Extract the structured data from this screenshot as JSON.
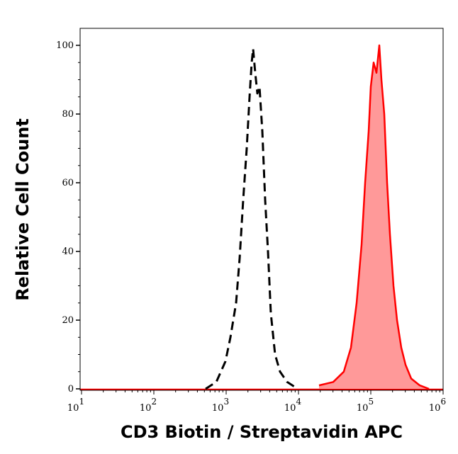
{
  "chart_data": {
    "type": "area",
    "title": "",
    "xlabel": "CD3 Biotin / Streptavidin APC",
    "ylabel": "Relative Cell Count",
    "xscale": "log",
    "xlim": [
      8,
      1200000
    ],
    "ylim": [
      0,
      105
    ],
    "x_ticks": [
      {
        "value": 10,
        "base": "10",
        "exp": "1"
      },
      {
        "value": 100,
        "base": "10",
        "exp": "2"
      },
      {
        "value": 1000,
        "base": "10",
        "exp": "3"
      },
      {
        "value": 10000,
        "base": "10",
        "exp": "4"
      },
      {
        "value": 100000,
        "base": "10",
        "exp": "5"
      },
      {
        "value": 1000000,
        "base": "10",
        "exp": "6"
      }
    ],
    "y_ticks": [
      0,
      20,
      40,
      60,
      80,
      100
    ],
    "grid": false,
    "legend": "none",
    "series": [
      {
        "style": "dashed",
        "color": "#000000",
        "fill": "none",
        "x": [
          520,
          730,
          977,
          1145,
          1372,
          1536,
          1718,
          1923,
          2107,
          2255,
          2360,
          2523,
          2700,
          2890,
          3162,
          3460,
          3788,
          4146,
          4745,
          5560,
          6970,
          9770
        ],
        "y": [
          0,
          2,
          8,
          15,
          25,
          38,
          55,
          70,
          85,
          95,
          99,
          92,
          86,
          88,
          75,
          55,
          40,
          22,
          10,
          5,
          2,
          0
        ]
      },
      {
        "style": "solid",
        "color": "#ff0000",
        "fill": "#ff9999",
        "x": [
          19230,
          30200,
          42360,
          53090,
          63680,
          74630,
          83560,
          93500,
          100000,
          109400,
          119700,
          131100,
          140300,
          153600,
          168000,
          184000,
          206000,
          230600,
          264000,
          302000,
          362000,
          475000,
          637000
        ],
        "y": [
          1,
          2,
          5,
          12,
          25,
          42,
          60,
          75,
          88,
          95,
          92,
          100,
          90,
          80,
          60,
          45,
          30,
          20,
          12,
          7,
          3,
          1,
          0
        ]
      }
    ]
  }
}
